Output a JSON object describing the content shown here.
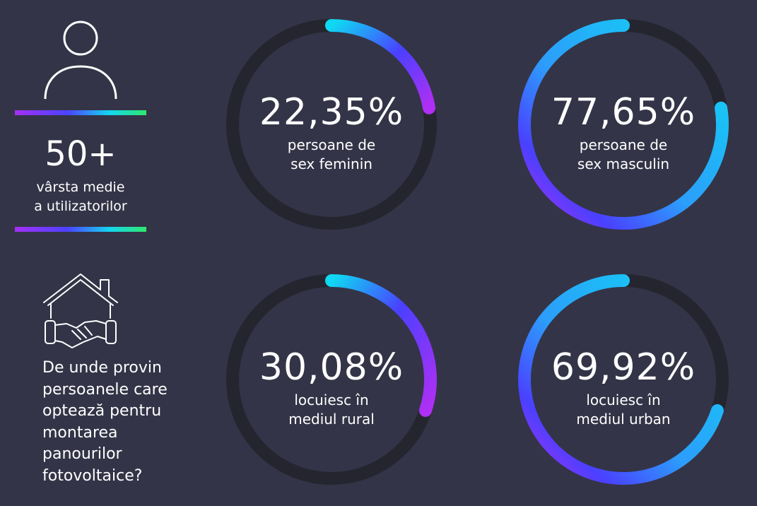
{
  "left_panel": {
    "age_value": "50+",
    "age_label_line1": "vârsta medie",
    "age_label_line2": "a utilizatorilor",
    "question_lines": [
      "De unde provin",
      "persoanele care",
      "optează pentru",
      "montarea",
      "panourilor",
      "fotovoltaice?"
    ]
  },
  "icons": {
    "person": "user-icon",
    "house": "house-handshake-icon"
  },
  "colors": {
    "background": "#343448",
    "track": "#25252f",
    "gradient_purple": "#b02ff3",
    "gradient_blue": "#4a40ff",
    "gradient_cyan": "#0fd9f2",
    "gradient_green": "#2ee86c"
  },
  "chart_data": [
    {
      "type": "pie",
      "group": "sex",
      "values": [
        22.35,
        77.65
      ],
      "labels": [
        "22,35%",
        "77,65%"
      ],
      "captions": [
        [
          "persoane de",
          "sex feminin"
        ],
        [
          "persoane de",
          "sex masculin"
        ]
      ]
    },
    {
      "type": "pie",
      "group": "mediu",
      "values": [
        30.08,
        69.92
      ],
      "labels": [
        "30,08%",
        "69,92%"
      ],
      "captions": [
        [
          "locuiesc în",
          "mediul rural"
        ],
        [
          "locuiesc în",
          "mediul urban"
        ]
      ]
    }
  ]
}
